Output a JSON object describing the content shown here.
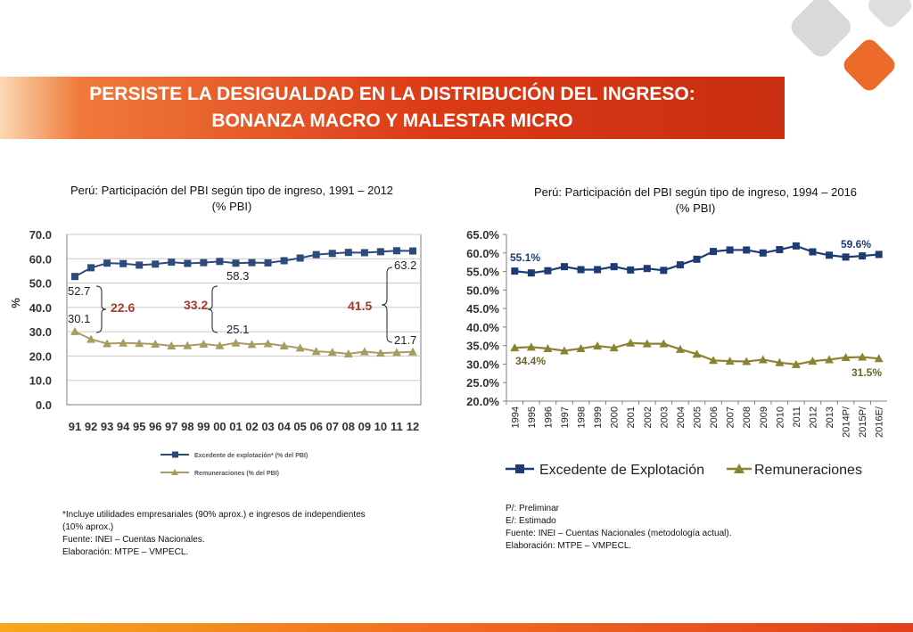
{
  "slide": {
    "title_line1": "PERSISTE LA DESIGUALDAD EN LA DISTRIBUCIÓN DEL INGRESO:",
    "title_line2": "BONANZA MACRO Y MALESTAR MICRO"
  },
  "colors": {
    "accent": "#e04a1a",
    "navy": "#1f3b73",
    "olive": "#8a8330",
    "left_series1": "#2a4b7c",
    "left_series2": "#a89c62",
    "bracket_value": "#a33a2a"
  },
  "left": {
    "title_line1": "Perú: Participación del PBI según tipo de ingreso, 1991 – 2012",
    "title_line2": "(% PBI)",
    "notes": [
      "*Incluye utilidades empresariales (90% aprox.) e ingresos de independientes",
      "(10% aprox.)",
      "Fuente: INEI – Cuentas Nacionales.",
      "Elaboración: MTPE – VMPECL."
    ],
    "annotations": [
      {
        "text": "22.6",
        "kind": "diff"
      },
      {
        "text": "33.2",
        "kind": "diff"
      },
      {
        "text": "41.5",
        "kind": "diff"
      },
      {
        "text": "52.7",
        "kind": "point"
      },
      {
        "text": "30.1",
        "kind": "point"
      },
      {
        "text": "58.3",
        "kind": "point"
      },
      {
        "text": "25.1",
        "kind": "point"
      },
      {
        "text": "63.2",
        "kind": "point"
      },
      {
        "text": "21.7",
        "kind": "point"
      }
    ]
  },
  "right": {
    "title_line1": "Perú: Participación del PBI según tipo de ingreso, 1994 – 2016",
    "title_line2": "(% PBI)",
    "notes": [
      "P/: Preliminar",
      "E/: Estimado",
      "Fuente: INEI – Cuentas Nacionales (metodología actual).",
      "Elaboración: MTPE – VMPECL."
    ],
    "annotations": [
      "55.1%",
      "34.4%",
      "59.6%",
      "31.5%"
    ]
  },
  "chart_data": [
    {
      "type": "line",
      "ylabel": "%",
      "ylim": [
        0,
        70
      ],
      "yticks": [
        "0.0",
        "10.0",
        "20.0",
        "30.0",
        "40.0",
        "50.0",
        "60.0",
        "70.0"
      ],
      "categories": [
        "91",
        "92",
        "93",
        "94",
        "95",
        "96",
        "97",
        "98",
        "99",
        "00",
        "01",
        "02",
        "03",
        "04",
        "05",
        "06",
        "07",
        "08",
        "09",
        "10",
        "11",
        "12"
      ],
      "grid": true,
      "legend_position": "bottom",
      "series": [
        {
          "name": "Excedente de explotación* (% del PBI)",
          "values": [
            52.7,
            56.3,
            58.2,
            58.0,
            57.4,
            57.8,
            58.6,
            58.1,
            58.4,
            58.9,
            58.2,
            58.4,
            58.3,
            59.2,
            60.3,
            61.7,
            62.2,
            62.6,
            62.5,
            62.9,
            63.3,
            63.2
          ]
        },
        {
          "name": "Remuneraciones (% del PBI)",
          "values": [
            30.1,
            26.9,
            25.1,
            25.4,
            25.2,
            24.9,
            24.2,
            24.3,
            24.9,
            24.3,
            25.4,
            24.8,
            25.1,
            24.2,
            23.3,
            21.9,
            21.6,
            20.9,
            21.8,
            21.2,
            21.5,
            21.7
          ]
        }
      ]
    },
    {
      "type": "line",
      "ylim": [
        20,
        65
      ],
      "yticks": [
        "20.0%",
        "25.0%",
        "30.0%",
        "35.0%",
        "40.0%",
        "45.0%",
        "50.0%",
        "55.0%",
        "60.0%",
        "65.0%"
      ],
      "categories": [
        "1994",
        "1995",
        "1996",
        "1997",
        "1998",
        "1999",
        "2000",
        "2001",
        "2002",
        "2003",
        "2004",
        "2005",
        "2006",
        "2007",
        "2008",
        "2009",
        "2010",
        "2011",
        "2012",
        "2013",
        "2014P/",
        "2015P/",
        "2016E/"
      ],
      "grid": false,
      "legend_position": "bottom",
      "series": [
        {
          "name": "Excedente de Explotación",
          "values": [
            55.1,
            54.6,
            55.2,
            56.3,
            55.5,
            55.5,
            56.3,
            55.4,
            55.8,
            55.3,
            56.8,
            58.3,
            60.4,
            60.8,
            60.8,
            60.0,
            60.9,
            61.9,
            60.3,
            59.4,
            58.9,
            59.2,
            59.6
          ]
        },
        {
          "name": "Remuneraciones",
          "values": [
            34.4,
            34.6,
            34.2,
            33.6,
            34.2,
            34.9,
            34.4,
            35.7,
            35.5,
            35.5,
            34.0,
            32.7,
            31.0,
            30.8,
            30.7,
            31.2,
            30.4,
            29.9,
            30.8,
            31.2,
            31.8,
            31.9,
            31.5
          ]
        }
      ]
    }
  ]
}
